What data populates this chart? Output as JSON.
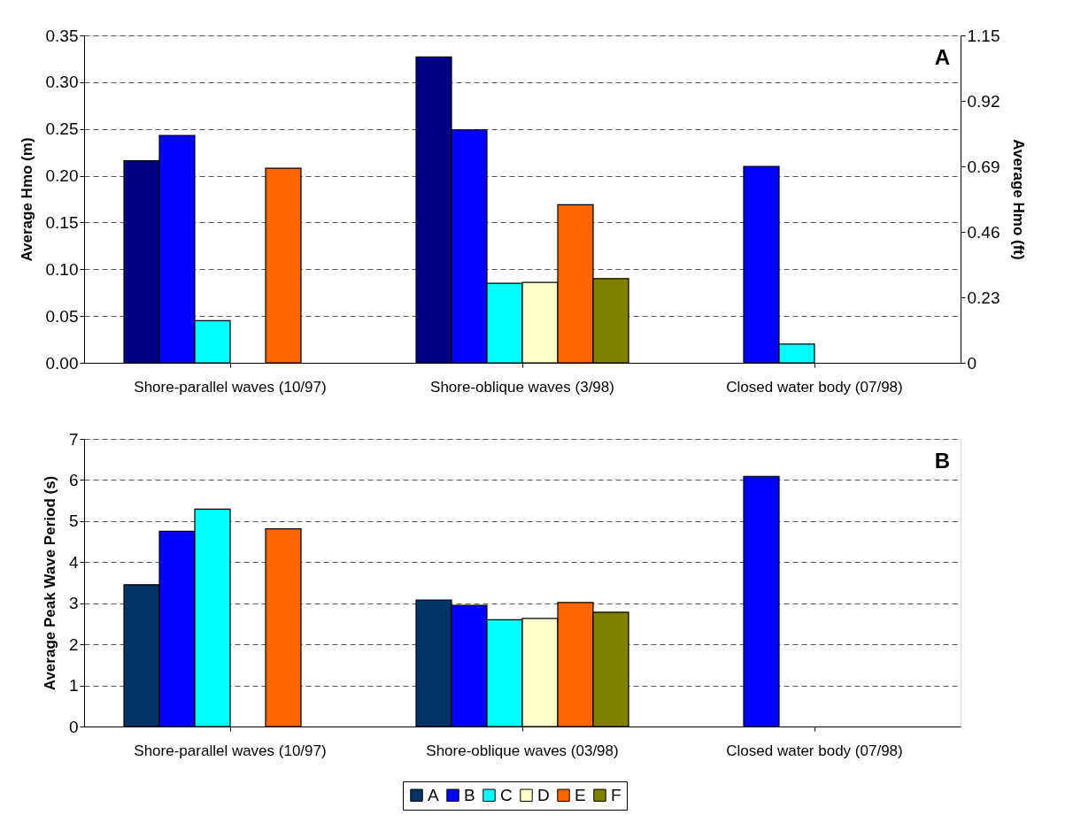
{
  "chart_data": [
    {
      "type": "bar",
      "ylabel": "Average Hmo (m)",
      "y2label": "Average Hmo (ft)",
      "categories": [
        "Shore-parallel waves (10/97)",
        "Shore-oblique waves (3/98)",
        "Closed water body (07/98)"
      ],
      "series": [
        {
          "color": "#000080",
          "values": [
            0.216,
            0.327,
            null
          ]
        },
        {
          "color": "#0000ff",
          "values": [
            0.243,
            0.249,
            0.21
          ]
        },
        {
          "color": "#00ffff",
          "values": [
            0.045,
            0.085,
            0.02
          ]
        },
        {
          "color": "#ffffcc",
          "values": [
            null,
            0.086,
            null
          ]
        },
        {
          "color": "#ff6600",
          "values": [
            0.208,
            0.169,
            null
          ]
        },
        {
          "color": "#808000",
          "values": [
            null,
            0.09,
            null
          ]
        }
      ],
      "ylim": [
        0,
        0.35
      ],
      "yticks": [
        {
          "value": 0,
          "label": "0.00"
        },
        0.05,
        {
          "value": 0.1,
          "label": "0.10"
        },
        0.15,
        {
          "value": 0.2,
          "label": "0.20"
        },
        0.25,
        {
          "value": 0.3,
          "label": "0.30"
        },
        0.35
      ],
      "y2lim": [
        0,
        1.15
      ],
      "y2ticks": [
        0,
        0.23,
        0.46,
        0.69,
        0.92,
        1.15
      ],
      "annotations": [
        "A"
      ],
      "grid": "y",
      "legend": false
    },
    {
      "type": "bar",
      "ylabel": "Average Peak Wave Period (s)",
      "categories": [
        "Shore-parallel waves (10/97)",
        "Shore-oblique waves (03/98)",
        "Closed water body (07/98)"
      ],
      "series": [
        {
          "name": "A",
          "color": "#003366",
          "values": [
            3.45,
            3.08,
            null
          ]
        },
        {
          "name": "B",
          "color": "#0000ff",
          "values": [
            4.75,
            2.95,
            6.09
          ]
        },
        {
          "name": "C",
          "color": "#00ffff",
          "values": [
            5.29,
            2.6,
            null
          ]
        },
        {
          "name": "D",
          "color": "#ffffcc",
          "values": [
            null,
            2.63,
            null
          ]
        },
        {
          "name": "E",
          "color": "#ff6600",
          "values": [
            4.81,
            3.02,
            null
          ]
        },
        {
          "name": "F",
          "color": "#808000",
          "values": [
            null,
            2.78,
            null
          ]
        }
      ],
      "ylim": [
        0,
        7
      ],
      "yticks": [
        0,
        1,
        2,
        3,
        4,
        5,
        6,
        7
      ],
      "annotations": [
        "B"
      ],
      "grid": "y",
      "legend": "bottom"
    }
  ]
}
